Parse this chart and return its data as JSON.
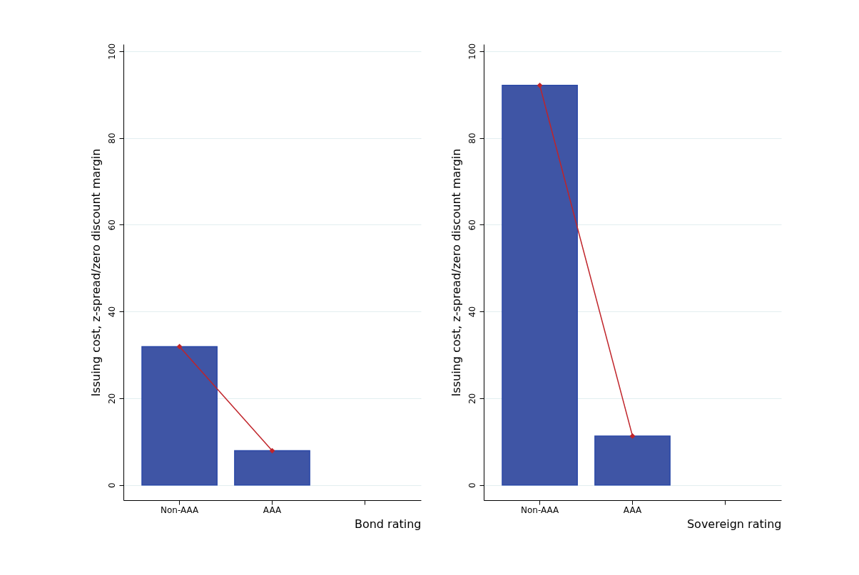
{
  "chart_data": [
    {
      "type": "bar",
      "xlabel": "Bond rating",
      "ylabel": "Issuing cost, z-spread/zero discount margin",
      "categories": [
        "Non-AAA",
        "AAA",
        null
      ],
      "ylim": [
        -3.5,
        101.6
      ],
      "yticks": [
        0,
        20,
        40,
        60,
        80,
        100
      ],
      "grid": "y",
      "series": [
        {
          "color": "#3f55a5",
          "values": [
            31.9,
            7.9,
            null
          ]
        },
        {
          "type": "line",
          "color": "#c0242a",
          "marker": "diamond",
          "values": [
            31.9,
            7.9,
            null
          ]
        }
      ]
    },
    {
      "type": "bar",
      "xlabel": "Sovereign rating",
      "ylabel": "Issuing cost, z-spread/zero discount margin",
      "categories": [
        "Non-AAA",
        "AAA",
        null
      ],
      "ylim": [
        -3.5,
        101.6
      ],
      "yticks": [
        0,
        20,
        40,
        60,
        80,
        100
      ],
      "grid": "y",
      "series": [
        {
          "color": "#3f55a5",
          "values": [
            92.1,
            11.3,
            null
          ]
        },
        {
          "type": "line",
          "color": "#c0242a",
          "marker": "diamond",
          "values": [
            92.1,
            11.3,
            null
          ]
        }
      ]
    }
  ]
}
